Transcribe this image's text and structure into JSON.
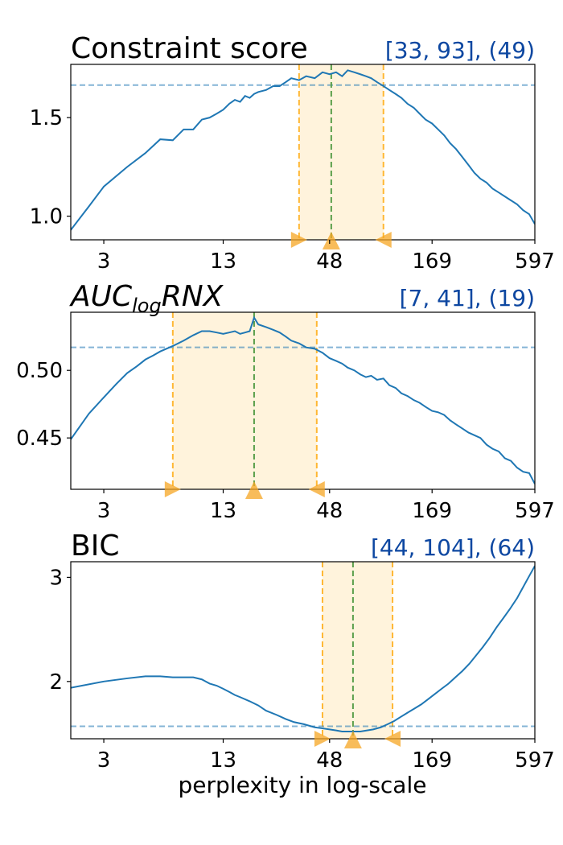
{
  "colors": {
    "line": "#1f77b4",
    "range_fill": "#fff3dc",
    "range_edge": "#ffb733",
    "center_line": "#5a9e4a",
    "baseline": "#1f77b4",
    "marker": "#f5a623",
    "range_label": "#0d47a1"
  },
  "xlabel": "perplexity in log-scale",
  "chart_data": [
    {
      "type": "line",
      "title": "Constraint score",
      "title_sub": "",
      "title_suffix": "",
      "range_label": "[33, 93], (49)",
      "x_scale": "log",
      "xlim": [
        2,
        597
      ],
      "x_ticks": [
        3,
        13,
        48,
        169,
        597
      ],
      "x_tick_labels": [
        "3",
        "13",
        "48",
        "169",
        "597"
      ],
      "ylim": [
        0.88,
        1.77
      ],
      "y_ticks": [
        1.0,
        1.5
      ],
      "y_tick_labels": [
        "1.0",
        "1.5"
      ],
      "range": [
        33,
        93
      ],
      "center": 49,
      "baseline_y": 1.665,
      "series": [
        {
          "x": [
            2,
            2.5,
            3,
            4,
            5,
            6,
            7,
            8,
            9,
            10,
            11,
            12,
            13,
            14,
            15,
            16,
            17,
            18,
            19,
            20,
            22,
            24,
            26,
            28,
            30,
            33,
            36,
            40,
            44,
            48,
            52,
            56,
            60,
            65,
            70,
            75,
            80,
            86,
            93,
            100,
            108,
            116,
            125,
            135,
            145,
            156,
            169,
            182,
            196,
            211,
            227,
            245,
            264,
            284,
            306,
            330,
            355,
            383,
            413,
            445,
            480,
            517,
            557,
            597
          ],
          "values": [
            0.93,
            1.05,
            1.15,
            1.25,
            1.32,
            1.39,
            1.385,
            1.44,
            1.44,
            1.49,
            1.5,
            1.52,
            1.54,
            1.57,
            1.59,
            1.58,
            1.61,
            1.6,
            1.62,
            1.63,
            1.64,
            1.66,
            1.66,
            1.68,
            1.7,
            1.69,
            1.71,
            1.7,
            1.73,
            1.72,
            1.73,
            1.71,
            1.74,
            1.73,
            1.72,
            1.71,
            1.7,
            1.68,
            1.66,
            1.64,
            1.62,
            1.6,
            1.57,
            1.55,
            1.52,
            1.49,
            1.47,
            1.44,
            1.41,
            1.37,
            1.34,
            1.3,
            1.26,
            1.22,
            1.19,
            1.17,
            1.14,
            1.12,
            1.1,
            1.08,
            1.06,
            1.03,
            1.01,
            0.96
          ]
        }
      ]
    },
    {
      "type": "line",
      "title": "AUC",
      "title_sub": "log",
      "title_suffix": "RNX",
      "range_label": "[7, 41], (19)",
      "x_scale": "log",
      "xlim": [
        2,
        597
      ],
      "x_ticks": [
        3,
        13,
        48,
        169,
        597
      ],
      "x_tick_labels": [
        "3",
        "13",
        "48",
        "169",
        "597"
      ],
      "ylim": [
        0.412,
        0.543
      ],
      "y_ticks": [
        0.45,
        0.5
      ],
      "y_tick_labels": [
        "0.45",
        "0.50"
      ],
      "range": [
        7,
        41
      ],
      "center": 19,
      "baseline_y": 0.517,
      "series": [
        {
          "x": [
            2,
            2.5,
            3,
            3.5,
            4,
            4.5,
            5,
            5.5,
            6,
            7,
            8,
            9,
            10,
            11,
            12,
            13,
            14,
            15,
            16,
            17,
            18,
            19,
            20,
            22,
            24,
            26,
            28,
            30,
            33,
            36,
            40,
            44,
            48,
            52,
            56,
            60,
            65,
            70,
            75,
            80,
            86,
            93,
            100,
            108,
            116,
            125,
            135,
            145,
            156,
            169,
            182,
            196,
            211,
            227,
            245,
            264,
            284,
            306,
            330,
            355,
            383,
            413,
            445,
            480,
            517,
            557,
            597
          ],
          "values": [
            0.449,
            0.468,
            0.48,
            0.49,
            0.498,
            0.503,
            0.508,
            0.511,
            0.514,
            0.518,
            0.522,
            0.526,
            0.529,
            0.529,
            0.528,
            0.527,
            0.528,
            0.529,
            0.527,
            0.528,
            0.529,
            0.539,
            0.534,
            0.532,
            0.53,
            0.528,
            0.525,
            0.522,
            0.52,
            0.517,
            0.516,
            0.513,
            0.509,
            0.507,
            0.505,
            0.502,
            0.5,
            0.497,
            0.495,
            0.496,
            0.493,
            0.494,
            0.489,
            0.487,
            0.483,
            0.481,
            0.478,
            0.476,
            0.473,
            0.47,
            0.469,
            0.467,
            0.463,
            0.46,
            0.457,
            0.454,
            0.452,
            0.45,
            0.445,
            0.442,
            0.44,
            0.435,
            0.433,
            0.428,
            0.425,
            0.424,
            0.416
          ]
        }
      ]
    },
    {
      "type": "line",
      "title": "BIC",
      "title_sub": "",
      "title_suffix": "",
      "range_label": "[44, 104], (64)",
      "x_scale": "log",
      "xlim": [
        2,
        597
      ],
      "x_ticks": [
        3,
        13,
        48,
        169,
        597
      ],
      "x_tick_labels": [
        "3",
        "13",
        "48",
        "169",
        "597"
      ],
      "ylim": [
        1.45,
        3.15
      ],
      "y_ticks": [
        2,
        3
      ],
      "y_tick_labels": [
        "2",
        "3"
      ],
      "range": [
        44,
        104
      ],
      "center": 64,
      "baseline_y": 1.57,
      "series": [
        {
          "x": [
            2,
            3,
            4,
            5,
            6,
            7,
            8,
            9,
            10,
            11,
            12,
            13,
            14,
            15,
            16,
            18,
            20,
            22,
            25,
            28,
            31,
            35,
            40,
            44,
            48,
            52,
            56,
            60,
            64,
            70,
            76,
            82,
            90,
            98,
            106,
            115,
            125,
            136,
            148,
            161,
            175,
            190,
            207,
            225,
            245,
            267,
            290,
            315,
            343,
            373,
            406,
            441,
            480,
            522,
            560,
            597
          ],
          "values": [
            1.94,
            2.0,
            2.03,
            2.05,
            2.05,
            2.04,
            2.04,
            2.04,
            2.02,
            1.98,
            1.96,
            1.93,
            1.9,
            1.87,
            1.85,
            1.81,
            1.77,
            1.72,
            1.68,
            1.64,
            1.61,
            1.59,
            1.56,
            1.55,
            1.54,
            1.53,
            1.52,
            1.52,
            1.52,
            1.52,
            1.53,
            1.54,
            1.56,
            1.59,
            1.62,
            1.66,
            1.7,
            1.74,
            1.78,
            1.83,
            1.88,
            1.93,
            1.98,
            2.04,
            2.1,
            2.17,
            2.25,
            2.33,
            2.42,
            2.52,
            2.61,
            2.7,
            2.8,
            2.92,
            3.02,
            3.11
          ]
        }
      ]
    }
  ]
}
